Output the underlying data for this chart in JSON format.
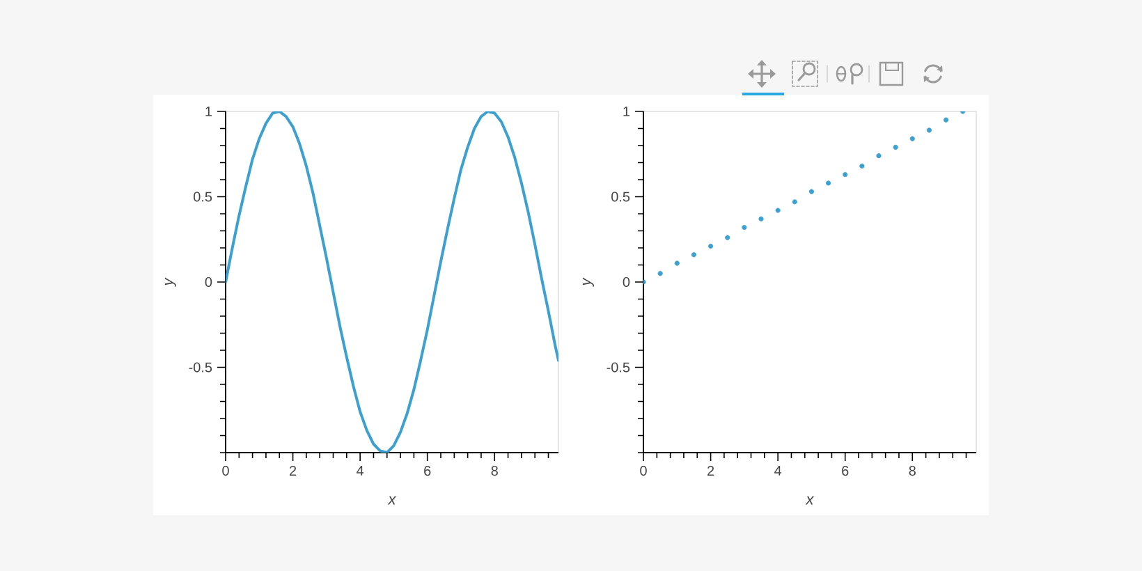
{
  "chart_data": [
    {
      "type": "line",
      "xlabel": "x",
      "ylabel": "y",
      "color": "#3ca0d0",
      "x": [
        0,
        0.2,
        0.4,
        0.6,
        0.8,
        1.0,
        1.2,
        1.4,
        1.6,
        1.8,
        2.0,
        2.2,
        2.4,
        2.6,
        2.8,
        3.0,
        3.2,
        3.4,
        3.6,
        3.8,
        4.0,
        4.2,
        4.4,
        4.6,
        4.8,
        5.0,
        5.2,
        5.4,
        5.6,
        5.8,
        6.0,
        6.2,
        6.4,
        6.6,
        6.8,
        7.0,
        7.2,
        7.4,
        7.6,
        7.8,
        8.0,
        8.2,
        8.4,
        8.6,
        8.8,
        9.0,
        9.2,
        9.4,
        9.6,
        9.8,
        9.9
      ],
      "values": [
        0,
        0.2,
        0.39,
        0.56,
        0.72,
        0.84,
        0.93,
        0.99,
        1.0,
        0.97,
        0.91,
        0.81,
        0.68,
        0.52,
        0.33,
        0.14,
        -0.06,
        -0.26,
        -0.44,
        -0.61,
        -0.76,
        -0.87,
        -0.95,
        -0.99,
        -1.0,
        -0.96,
        -0.88,
        -0.77,
        -0.63,
        -0.46,
        -0.28,
        -0.08,
        0.12,
        0.31,
        0.49,
        0.66,
        0.79,
        0.9,
        0.97,
        1.0,
        0.99,
        0.94,
        0.85,
        0.73,
        0.58,
        0.41,
        0.22,
        0.02,
        -0.17,
        -0.37,
        -0.46
      ],
      "xlim": [
        0,
        9.9
      ],
      "ylim": [
        -1,
        1
      ],
      "xticks": [
        0,
        2,
        4,
        6,
        8
      ],
      "yticks": [
        -0.5,
        0,
        0.5,
        1
      ]
    },
    {
      "type": "scatter",
      "xlabel": "x",
      "ylabel": "y",
      "color": "#3ca0d0",
      "marker": "circle",
      "x": [
        0,
        0.5,
        1.0,
        1.5,
        2.0,
        2.5,
        3.0,
        3.5,
        4.0,
        4.5,
        5.0,
        5.5,
        6.0,
        6.5,
        7.0,
        7.5,
        8.0,
        8.5,
        9.0,
        9.5
      ],
      "values": [
        0,
        0.05,
        0.11,
        0.16,
        0.21,
        0.26,
        0.32,
        0.37,
        0.42,
        0.47,
        0.53,
        0.58,
        0.63,
        0.68,
        0.74,
        0.79,
        0.84,
        0.89,
        0.95,
        1.0
      ],
      "xlim": [
        0,
        9.9
      ],
      "ylim": [
        -1,
        1
      ],
      "xticks": [
        0,
        2,
        4,
        6,
        8
      ],
      "yticks": [
        -0.5,
        0,
        0.5,
        1
      ]
    }
  ]
}
